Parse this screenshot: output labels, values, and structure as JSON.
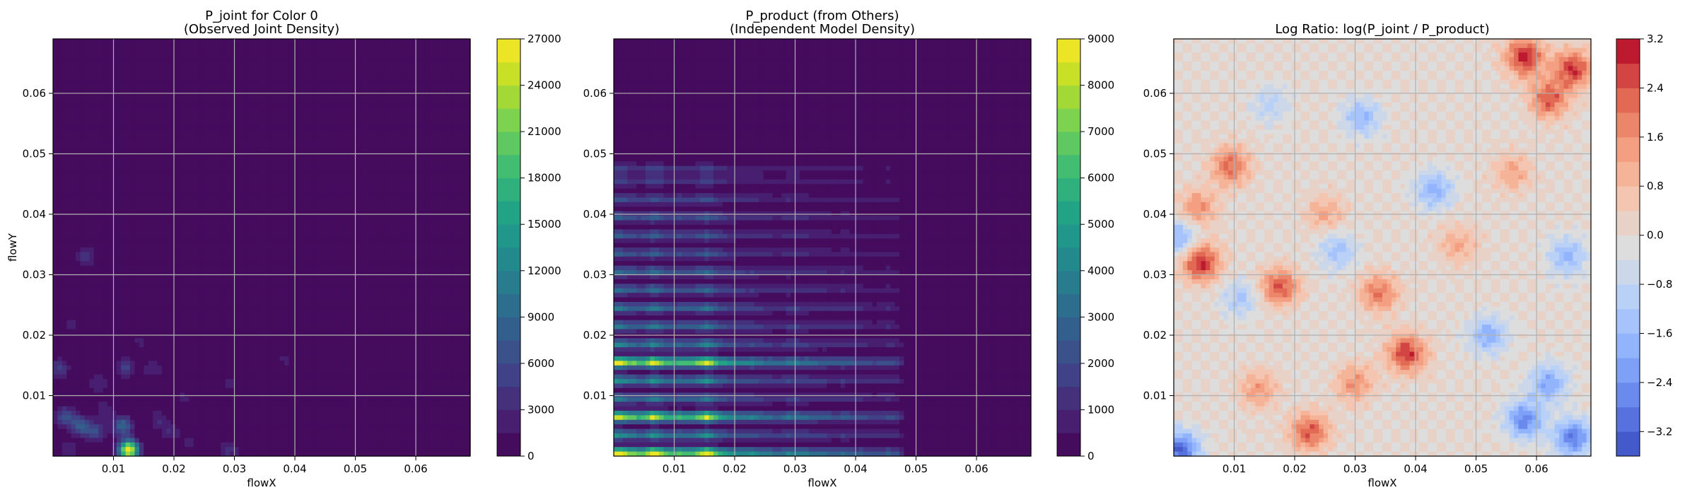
{
  "chart_data": [
    {
      "type": "heatmap",
      "title": "P_joint for Color 0\n(Observed Joint Density)",
      "xlabel": "flowX",
      "ylabel": "flowY",
      "xlim": [
        0.0,
        0.069
      ],
      "ylim": [
        0.0,
        0.069
      ],
      "xticks": [
        0.01,
        0.02,
        0.03,
        0.04,
        0.05,
        0.06
      ],
      "yticks": [
        0.01,
        0.02,
        0.03,
        0.04,
        0.05,
        0.06
      ],
      "tick_labels": [
        "0.01",
        "0.02",
        "0.03",
        "0.04",
        "0.05",
        "0.06"
      ],
      "grid": true,
      "colormap": "viridis",
      "colorbar": {
        "min": 0,
        "max": 27000,
        "ticks": [
          0,
          3000,
          6000,
          9000,
          12000,
          15000,
          18000,
          21000,
          24000,
          27000
        ],
        "levels": 18
      },
      "background_value": 0,
      "hotspots": [
        {
          "x": 0.0125,
          "y": 0.001,
          "value": 27000
        },
        {
          "x": 0.0115,
          "y": 0.005,
          "value": 9000
        },
        {
          "x": 0.0045,
          "y": 0.005,
          "value": 8000
        },
        {
          "x": 0.002,
          "y": 0.0065,
          "value": 7000
        },
        {
          "x": 0.007,
          "y": 0.004,
          "value": 6000
        },
        {
          "x": 0.001,
          "y": 0.0145,
          "value": 5000
        },
        {
          "x": 0.012,
          "y": 0.0145,
          "value": 5000
        },
        {
          "x": 0.029,
          "y": 0.001,
          "value": 4000
        },
        {
          "x": 0.0055,
          "y": 0.033,
          "value": 4000
        },
        {
          "x": 0.0085,
          "y": 0.0075,
          "value": 3000
        },
        {
          "x": 0.0175,
          "y": 0.006,
          "value": 3000
        },
        {
          "x": 0.0195,
          "y": 0.004,
          "value": 3000
        },
        {
          "x": 0.0075,
          "y": 0.012,
          "value": 3000
        },
        {
          "x": 0.0165,
          "y": 0.0145,
          "value": 3000
        },
        {
          "x": 0.0215,
          "y": 0.0095,
          "value": 2000
        },
        {
          "x": 0.0225,
          "y": 0.002,
          "value": 2000
        },
        {
          "x": 0.029,
          "y": 0.012,
          "value": 2000
        },
        {
          "x": 0.0385,
          "y": 0.016,
          "value": 2000
        },
        {
          "x": 0.0145,
          "y": 0.019,
          "value": 2000
        },
        {
          "x": 0.003,
          "y": 0.022,
          "value": 2000
        },
        {
          "x": 0.0025,
          "y": 0.001,
          "value": 3000
        },
        {
          "x": 0.0105,
          "y": 0.047,
          "value": 1500
        }
      ]
    },
    {
      "type": "heatmap",
      "title": "P_product (from Others)\n(Independent Model Density)",
      "xlabel": "flowX",
      "ylabel": "",
      "xlim": [
        0.0,
        0.069
      ],
      "ylim": [
        0.0,
        0.069
      ],
      "xticks": [
        0.01,
        0.02,
        0.03,
        0.04,
        0.05,
        0.06
      ],
      "yticks": [
        0.01,
        0.02,
        0.03,
        0.04,
        0.05,
        0.06
      ],
      "tick_labels": [
        "0.01",
        "0.02",
        "0.03",
        "0.04",
        "0.05",
        "0.06"
      ],
      "grid": true,
      "colormap": "viridis",
      "colorbar": {
        "min": 0,
        "max": 9000,
        "ticks": [
          0,
          1000,
          2000,
          3000,
          4000,
          5000,
          6000,
          7000,
          8000,
          9000
        ],
        "levels": 18
      },
      "background_value": 0,
      "marginal_x": {
        "x": [
          0.0005,
          0.002,
          0.0035,
          0.005,
          0.0065,
          0.008,
          0.0095,
          0.011,
          0.0125,
          0.014,
          0.0155,
          0.017,
          0.0185,
          0.02,
          0.0215,
          0.023,
          0.0245,
          0.026,
          0.0275,
          0.029,
          0.0305,
          0.032,
          0.0335,
          0.035,
          0.0365,
          0.038,
          0.0395,
          0.041,
          0.0425,
          0.044,
          0.0455,
          0.047
        ],
        "weight": [
          1.0,
          0.75,
          0.7,
          0.6,
          1.0,
          0.7,
          0.6,
          0.65,
          0.6,
          0.7,
          0.95,
          0.6,
          0.5,
          0.45,
          0.4,
          0.45,
          0.35,
          0.35,
          0.3,
          0.4,
          0.35,
          0.35,
          0.3,
          0.3,
          0.25,
          0.3,
          0.25,
          0.25,
          0.2,
          0.2,
          0.25,
          0.2
        ]
      },
      "marginal_y": {
        "y": [
          0.0005,
          0.0035,
          0.0065,
          0.0095,
          0.0125,
          0.0155,
          0.0185,
          0.0215,
          0.0245,
          0.0275,
          0.0305,
          0.0335,
          0.0365,
          0.0395,
          0.0425,
          0.0455,
          0.0475
        ],
        "weight": [
          1.0,
          0.5,
          0.9,
          0.4,
          0.5,
          0.95,
          0.45,
          0.4,
          0.4,
          0.35,
          0.35,
          0.3,
          0.3,
          0.3,
          0.25,
          0.2,
          0.2
        ]
      }
    },
    {
      "type": "heatmap",
      "title": "Log Ratio: log(P_joint / P_product)",
      "xlabel": "flowX",
      "ylabel": "",
      "xlim": [
        0.0,
        0.069
      ],
      "ylim": [
        0.0,
        0.069
      ],
      "xticks": [
        0.01,
        0.02,
        0.03,
        0.04,
        0.05,
        0.06
      ],
      "yticks": [
        0.01,
        0.02,
        0.03,
        0.04,
        0.05,
        0.06
      ],
      "tick_labels": [
        "0.01",
        "0.02",
        "0.03",
        "0.04",
        "0.05",
        "0.06"
      ],
      "grid": true,
      "colormap": "coolwarm",
      "colorbar": {
        "min": -3.6,
        "max": 3.2,
        "ticks": [
          3.2,
          2.4,
          1.6,
          0.8,
          0.0,
          -0.8,
          -1.6,
          -2.4,
          -3.2
        ],
        "tick_labels": [
          "3.2",
          "2.4",
          "1.6",
          "0.8",
          "0.0",
          "−0.8",
          "−1.6",
          "−2.4",
          "−3.2"
        ],
        "levels": 17
      },
      "hotspots": [
        {
          "x": 0.058,
          "y": 0.066,
          "value": 3.0
        },
        {
          "x": 0.066,
          "y": 0.064,
          "value": 2.8
        },
        {
          "x": 0.062,
          "y": 0.059,
          "value": 2.4
        },
        {
          "x": 0.0045,
          "y": 0.032,
          "value": 3.0
        },
        {
          "x": 0.0095,
          "y": 0.048,
          "value": 2.2
        },
        {
          "x": 0.0175,
          "y": 0.028,
          "value": 2.4
        },
        {
          "x": 0.0385,
          "y": 0.017,
          "value": 2.8
        },
        {
          "x": 0.034,
          "y": 0.027,
          "value": 2.0
        },
        {
          "x": 0.0225,
          "y": 0.004,
          "value": 2.4
        },
        {
          "x": 0.004,
          "y": 0.041,
          "value": 1.6
        },
        {
          "x": 0.03,
          "y": 0.012,
          "value": 1.6
        },
        {
          "x": 0.025,
          "y": 0.04,
          "value": 1.2
        },
        {
          "x": 0.047,
          "y": 0.035,
          "value": 1.2
        },
        {
          "x": 0.014,
          "y": 0.011,
          "value": 1.4
        },
        {
          "x": 0.056,
          "y": 0.047,
          "value": 1.2
        },
        {
          "x": 0.001,
          "y": 0.001,
          "value": -3.2
        },
        {
          "x": 0.058,
          "y": 0.006,
          "value": -2.6
        },
        {
          "x": 0.066,
          "y": 0.003,
          "value": -2.8
        },
        {
          "x": 0.062,
          "y": 0.012,
          "value": -2.0
        },
        {
          "x": 0.052,
          "y": 0.02,
          "value": -1.8
        },
        {
          "x": 0.043,
          "y": 0.044,
          "value": -1.8
        },
        {
          "x": 0.065,
          "y": 0.033,
          "value": -1.6
        },
        {
          "x": 0.031,
          "y": 0.056,
          "value": -1.6
        },
        {
          "x": 0.001,
          "y": 0.036,
          "value": -1.8
        },
        {
          "x": 0.027,
          "y": 0.034,
          "value": -1.4
        },
        {
          "x": 0.011,
          "y": 0.026,
          "value": -1.2
        },
        {
          "x": 0.016,
          "y": 0.058,
          "value": -1.0
        }
      ]
    }
  ]
}
